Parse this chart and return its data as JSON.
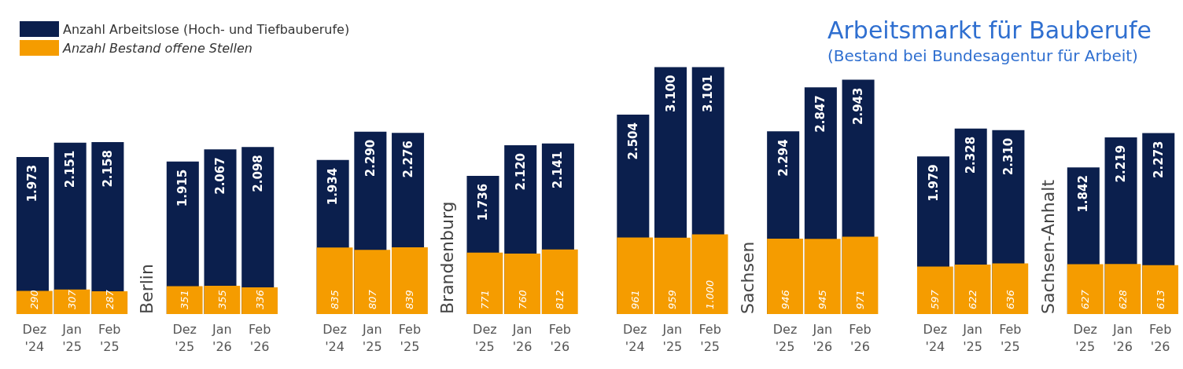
{
  "chart_data": {
    "type": "bar",
    "title": "Arbeitsmarkt für Bauberufe",
    "subtitle": "(Bestand bei Bundesagentur für Arbeit)",
    "categories": [
      "Dez '24",
      "Jan '25",
      "Feb '25",
      "Dez '25",
      "Jan '26",
      "Feb '26",
      "Dez '24",
      "Jan '25",
      "Feb '25",
      "Dez '25",
      "Jan '26",
      "Feb '26",
      "Dez '24",
      "Jan '25",
      "Feb '25",
      "Dez '25",
      "Jan '26",
      "Feb '26",
      "Dez '24",
      "Jan '25",
      "Feb '25",
      "Dez '25",
      "Jan '26",
      "Feb '26"
    ],
    "series": [
      {
        "name": "Anzahl Arbeitslose (Hoch- und Tiefbauberufe)",
        "color": "#0b1f4d",
        "values": [
          1973,
          2151,
          2158,
          1915,
          2067,
          2098,
          1934,
          2290,
          2276,
          1736,
          2120,
          2141,
          2504,
          3100,
          3101,
          2294,
          2847,
          2943,
          1979,
          2328,
          2310,
          1842,
          2219,
          2273
        ],
        "value_labels": [
          "1.973",
          "2.151",
          "2.158",
          "1.915",
          "2.067",
          "2.098",
          "1.934",
          "2.290",
          "2.276",
          "1.736",
          "2.120",
          "2.141",
          "2.504",
          "3.100",
          "3.101",
          "2.294",
          "2.847",
          "2.943",
          "1.979",
          "2.328",
          "2.310",
          "1.842",
          "2.219",
          "2.273"
        ]
      },
      {
        "name": "Anzahl Bestand offene Stellen",
        "color": "#f59c00",
        "values": [
          290,
          307,
          287,
          351,
          355,
          336,
          835,
          807,
          839,
          771,
          760,
          812,
          961,
          959,
          1000,
          946,
          945,
          971,
          597,
          622,
          636,
          627,
          628,
          613
        ],
        "value_labels": [
          "290",
          "307",
          "287",
          "351",
          "355",
          "336",
          "835",
          "807",
          "839",
          "771",
          "760",
          "812",
          "961",
          "959",
          "1.000",
          "946",
          "945",
          "971",
          "597",
          "622",
          "636",
          "627",
          "628",
          "613"
        ]
      }
    ],
    "annotations": [
      "Berlin",
      "Brandenburg",
      "Sachsen",
      "Sachsen-Anhalt"
    ],
    "legend": "top left"
  }
}
